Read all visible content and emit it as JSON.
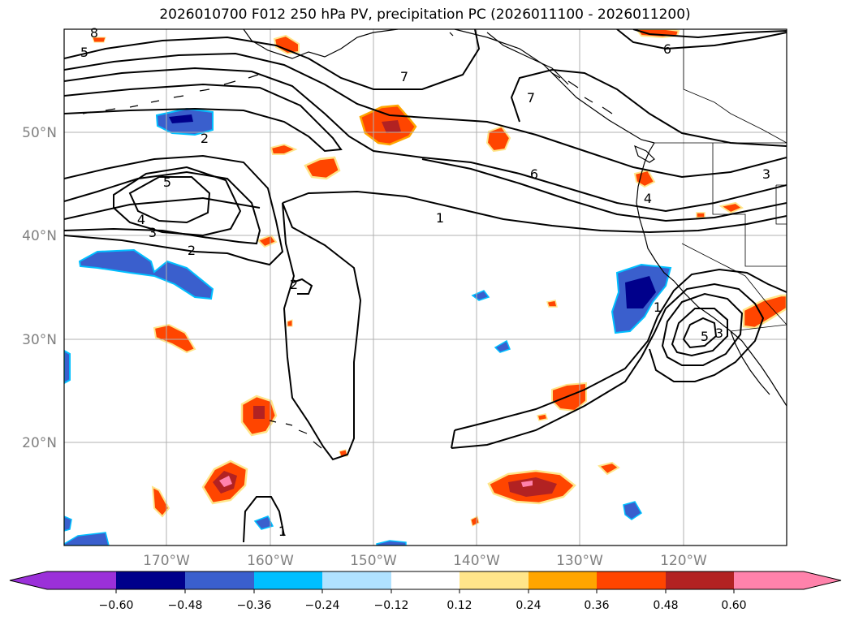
{
  "title": "2026010700 F012 250 hPa PV, precipitation PC (2026011100 - 2026011200)",
  "lat_labels": [
    "50°N",
    "40°N",
    "30°N",
    "20°N"
  ],
  "lon_labels": [
    "170°W",
    "160°W",
    "150°W",
    "140°W",
    "130°W",
    "120°W"
  ],
  "colorbar": {
    "ticks": [
      "−0.60",
      "−0.48",
      "−0.36",
      "−0.24",
      "−0.12",
      "0.12",
      "0.24",
      "0.36",
      "0.48",
      "0.60"
    ],
    "colors": [
      "#9b30d9",
      "#00008b",
      "#3a5fcd",
      "#00bfff",
      "#b0e2ff",
      "#ffffff",
      "#ffe58a",
      "#ffa500",
      "#ff4500",
      "#b22222",
      "#ff82ab"
    ]
  },
  "contour_labels": [
    "8",
    "5",
    "7",
    "7",
    "6",
    "2",
    "5",
    "6",
    "3",
    "4",
    "3",
    "1",
    "2",
    "4",
    "1",
    "2",
    "3",
    "5",
    "1"
  ],
  "colors": {
    "land_outline": "#000000",
    "contour": "#000000",
    "grid": "#b0b0b0"
  }
}
